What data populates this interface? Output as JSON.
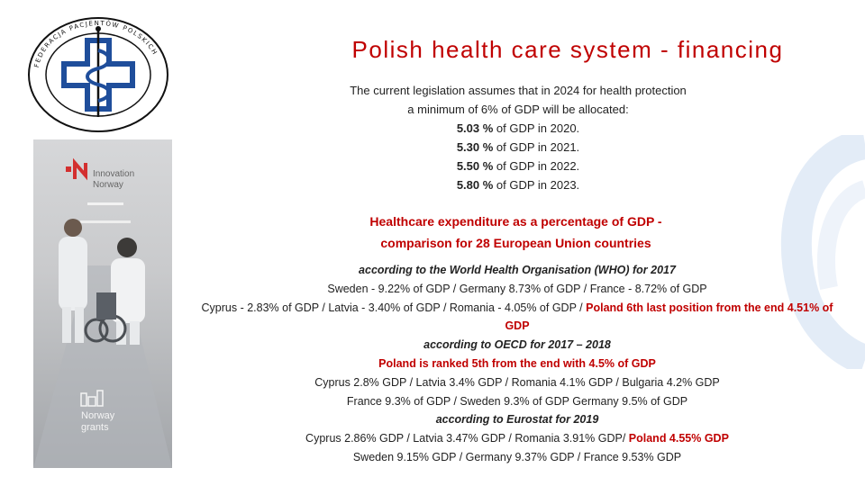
{
  "logo": {
    "alt": "Federacja Pacjentów Polskich emblem",
    "ring_text": "FEDERACJA PACJENTÓW POLSKICH"
  },
  "header": {
    "title": "Polish health care system - financing"
  },
  "legislation": {
    "intro_line1": "The current legislation assumes that in 2024 for health protection",
    "intro_line2": "a minimum of 6% of GDP will be allocated:",
    "items": [
      {
        "value": "5.03 %",
        "text": " of GDP in 2020."
      },
      {
        "value": "5.30 %",
        "text": " of GDP in 2021."
      },
      {
        "value": "5.50 %",
        "text": " of GDP in 2022."
      },
      {
        "value": "5.80 %",
        "text": " of GDP in 2023."
      }
    ]
  },
  "comparison": {
    "heading_line1": "Healthcare expenditure as a percentage of GDP -",
    "heading_line2": "comparison for 28 European Union countries",
    "who_source": "according to the World Health Organisation (WHO) for 2017",
    "who_line1": "Sweden - 9.22% of GDP / Germany 8.73% of GDP / France - 8.72% of GDP",
    "who_line2": "Cyprus - 2.83% of GDP / Latvia - 3.40% of GDP / Romania - 4.05% of GDP / ",
    "who_poland": "Poland 6th last position from the end 4.51% of GDP",
    "oecd_source": "according to OECD for 2017 – 2018",
    "oecd_poland": "Poland is ranked 5th from the end with 4.5% of GDP",
    "oecd_line1": "Cyprus 2.8% GDP / Latvia 3.4% GDP / Romania 4.1% GDP / Bulgaria 4.2% GDP",
    "oecd_line2": "France 9.3% of GDP / Sweden 9.3% of GDP Germany 9.5% of GDP",
    "eurostat_source": "according to Eurostat for 2019",
    "eurostat_line1": "Cyprus 2.86% GDP / Latvia 3.47% GDP / Romania 3.91% GDP/ ",
    "eurostat_poland": "Poland 4.55% GDP",
    "eurostat_line2": "Sweden 9.15% GDP / Germany 9.37% GDP / France 9.53% GDP"
  },
  "sidebar": {
    "brand1": "Innovation",
    "brand2": "Norway",
    "grants1": "Norway",
    "grants2": "grants"
  },
  "colors": {
    "accent_red": "#c00000",
    "logo_blue": "#1f4e9b",
    "swoosh": "#e3ecf7"
  }
}
